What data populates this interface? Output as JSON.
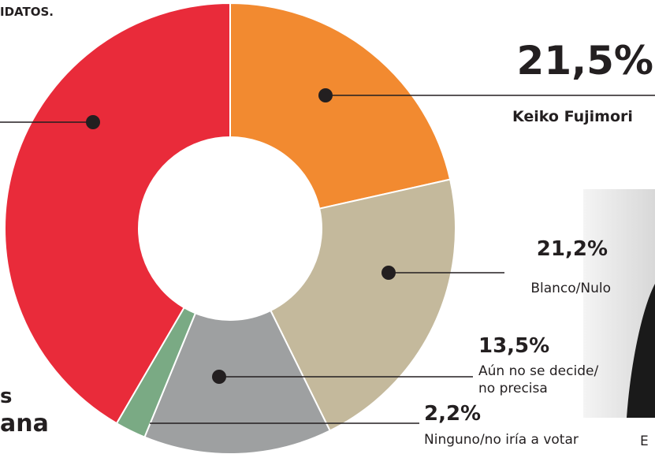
{
  "chart_data": {
    "type": "donut",
    "annotations": [
      "IDATOS.",
      "s",
      "ana",
      "E"
    ],
    "categories": [
      "Keiko Fujimori",
      "Blanco/Nulo",
      "Aún no se decide/ no precisa",
      "Ninguno/no iría a votar",
      null
    ],
    "values": [
      21.5,
      21.2,
      13.5,
      2.2,
      41.6
    ],
    "value_labels": [
      "21,5%",
      "21,2%",
      "13,5%",
      "2,2%",
      null
    ],
    "colors": [
      "#f28a30",
      "#c4b99c",
      "#9ea0a1",
      "#7aaa84",
      "#e92b3a"
    ]
  }
}
